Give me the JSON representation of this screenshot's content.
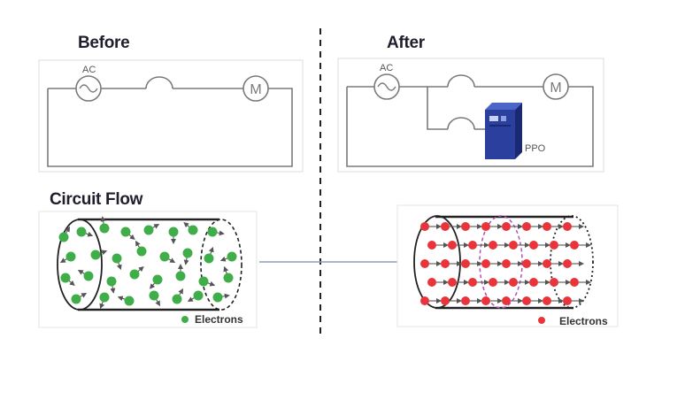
{
  "before": {
    "title": "Before",
    "source_label": "AC",
    "motor_label": "M"
  },
  "after": {
    "title": "After",
    "source_label": "AC",
    "motor_label": "M",
    "device_label": "PPO"
  },
  "flow": {
    "title": "Circuit Flow",
    "before_legend": "Electrons",
    "after_legend": "Electrons"
  },
  "colors": {
    "electron_before": "#3fae49",
    "electron_after": "#e8343a",
    "arrow": "#555555",
    "wire": "#7a7a7a",
    "device": "#2a3f9e",
    "connector": "#8aa0b8",
    "divider": "#222222"
  }
}
